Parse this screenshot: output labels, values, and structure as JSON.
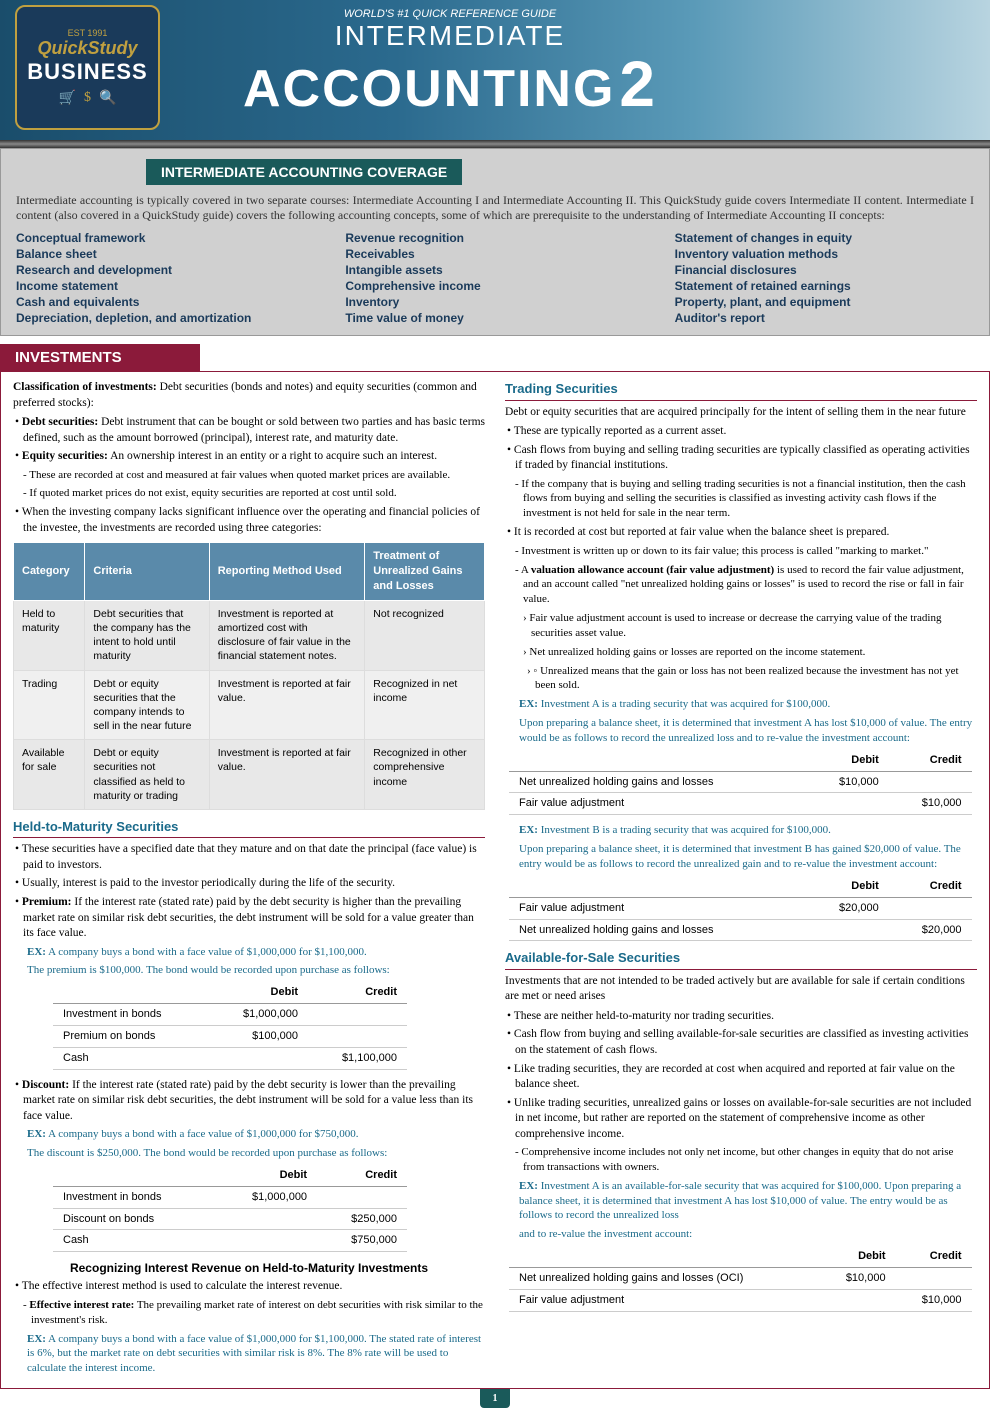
{
  "header": {
    "tag": "WORLD'S #1 QUICK REFERENCE GUIDE",
    "title1": "INTERMEDIATE",
    "title2": "ACCOUNTING",
    "num": "2",
    "logo_top": "EST 1991",
    "logo_main": "QuickStudy",
    "logo_sub": "BUSINESS"
  },
  "coverage": {
    "title": "INTERMEDIATE ACCOUNTING COVERAGE",
    "intro": "Intermediate accounting is typically covered in two separate courses: Intermediate Accounting I and Intermediate Accounting II. This QuickStudy guide covers Intermediate II content. Intermediate I content (also covered in a QuickStudy guide) covers the following accounting concepts, some of which are prerequisite to the understanding of Intermediate Accounting II concepts:",
    "items": [
      "Conceptual framework",
      "Revenue recognition",
      "Statement of changes in equity",
      "Balance sheet",
      "Receivables",
      "Inventory valuation methods",
      "Research and development",
      "Intangible assets",
      "Financial disclosures",
      "Income statement",
      "Comprehensive income",
      "Statement of retained earnings",
      "Cash and equivalents",
      "Inventory",
      "Property, plant, and equipment",
      "Depreciation, depletion, and amortization",
      "Time value of money",
      "Auditor's report"
    ]
  },
  "investments": {
    "title": "INVESTMENTS",
    "intro": "Classification of investments:",
    "intro2": " Debt securities (bonds and notes) and equity securities (common and preferred stocks):",
    "debt_label": "Debt securities:",
    "debt_text": " Debt instrument that can be bought or sold between two parties and has basic terms defined, such as the amount borrowed (principal), interest rate, and maturity date.",
    "equity_label": "Equity securities:",
    "equity_text": " An ownership interest in an entity or a right to acquire such an interest.",
    "equity_sub1": "These are recorded at cost and measured at fair values when quoted market prices are available.",
    "equity_sub2": "If quoted market prices do not exist, equity securities are reported at cost until sold.",
    "influence": "When the investing company lacks significant influence over the operating and financial policies of the investee, the investments are recorded using three categories:",
    "table_headers": [
      "Category",
      "Criteria",
      "Reporting Method Used",
      "Treatment of Unrealized Gains and Losses"
    ],
    "table_rows": [
      [
        "Held to maturity",
        "Debt securities that the company has the intent to hold until maturity",
        "Investment is reported at amortized cost with disclosure of fair value in the financial statement notes.",
        "Not recognized"
      ],
      [
        "Trading",
        "Debt or equity securities that the company intends to sell in the near future",
        "Investment is reported at fair value.",
        "Recognized in net income"
      ],
      [
        "Available for sale",
        "Debt or equity securities not classified as held to maturity or trading",
        "Investment is reported at fair value.",
        "Recognized in other comprehensive income"
      ]
    ],
    "htm_title": "Held-to-Maturity Securities",
    "htm_b1": "These securities have a specified date that they mature and on that date the principal (face value) is paid to investors.",
    "htm_b2": "Usually, interest is paid to the investor periodically during the life of the security.",
    "htm_premium_label": "Premium:",
    "htm_premium": " If the interest rate (stated rate) paid by the debt security is higher than the prevailing market rate on similar risk debt securities, the debt instrument will be sold for a value greater than its face value.",
    "htm_ex1a": "EX: A company buys a bond with a face value of $1,000,000 for $1,100,000.",
    "htm_ex1b": "The premium is $100,000. The bond would be recorded upon purchase as follows:",
    "premium_entries": [
      [
        "Investment in bonds",
        "$1,000,000",
        ""
      ],
      [
        "Premium on bonds",
        "$100,000",
        ""
      ],
      [
        "Cash",
        "",
        "$1,100,000"
      ]
    ],
    "htm_discount_label": "Discount:",
    "htm_discount": " If the interest rate (stated rate) paid by the debt security is lower than the prevailing market rate on similar risk debt securities, the debt instrument will be sold for a value less than its face value.",
    "htm_ex2a": "EX: A company buys a bond with a face value of $1,000,000 for $750,000.",
    "htm_ex2b": "The discount is $250,000. The bond would be recorded upon purchase as follows:",
    "discount_entries": [
      [
        "Investment in bonds",
        "$1,000,000",
        ""
      ],
      [
        "Discount on bonds",
        "",
        "$250,000"
      ],
      [
        "Cash",
        "",
        "$750,000"
      ]
    ],
    "interest_title": "Recognizing Interest Revenue on Held-to-Maturity Investments",
    "interest_b1": "The effective interest method is used to calculate the interest revenue.",
    "interest_eff_label": "Effective interest rate:",
    "interest_eff": " The prevailing market rate of interest on debt securities with risk similar to the investment's risk.",
    "interest_ex": "EX: A company buys a bond with a face value of $1,000,000 for $1,100,000. The stated rate of interest is 6%, but the market rate on debt securities with similar risk is 8%. The 8% rate will be used to calculate the interest income.",
    "trading_title": "Trading Securities",
    "trading_intro": "Debt or equity securities that are acquired principally for the intent of selling them in the near future",
    "trading_b1": "These are typically reported as a current asset.",
    "trading_b2": "Cash flows from buying and selling trading securities are typically classified as operating activities if traded by financial institutions.",
    "trading_s1": "If the company that is buying and selling trading securities is not a financial institution, then the cash flows from buying and selling the securities is classified as investing activity cash flows if the investment is not held for sale in the near term.",
    "trading_b3": "It is recorded at cost but reported at fair value when the balance sheet is prepared.",
    "trading_s2": "Investment is written up or down to its fair value; this process is called \"marking to market.\"",
    "trading_val_label": "valuation allowance account (fair value adjustment)",
    "trading_val": " is used to record the fair value adjustment, and an account called \"net unrealized holding gains or losses\" is used to record the rise or fall in fair value.",
    "trading_s3": "Fair value adjustment account is used to increase or decrease the carrying value of the trading securities asset value.",
    "trading_s4": "Net unrealized holding gains or losses are reported on the income statement.",
    "trading_s5": "Unrealized means that the gain or loss has not been realized because the investment has not yet been sold.",
    "trading_exA1": "EX: Investment A is a trading security that was acquired for $100,000.",
    "trading_exA2": "Upon preparing a balance sheet, it is determined that investment A has lost $10,000 of value. The entry would be as follows to record the unrealized loss and to re-value the investment account:",
    "trading_entriesA": [
      [
        "Net unrealized holding gains and losses",
        "$10,000",
        ""
      ],
      [
        "Fair value adjustment",
        "",
        "$10,000"
      ]
    ],
    "trading_exB1": "EX: Investment B is a trading security that was acquired for $100,000.",
    "trading_exB2": "Upon preparing a balance sheet, it is determined that investment B has gained $20,000 of value. The entry would be as follows to record the unrealized gain and to re-value the investment account:",
    "trading_entriesB": [
      [
        "Fair value adjustment",
        "$20,000",
        ""
      ],
      [
        "Net unrealized holding gains and losses",
        "",
        "$20,000"
      ]
    ],
    "afs_title": "Available-for-Sale Securities",
    "afs_intro": "Investments that are not intended to be traded actively but are available for sale if certain conditions are met or need arises",
    "afs_b1": "These are neither held-to-maturity nor trading securities.",
    "afs_b2": "Cash flow from buying and selling available-for-sale securities are classified as investing activities on the statement of cash flows.",
    "afs_b3": "Like trading securities, they are recorded at cost when acquired and reported at fair value on the balance sheet.",
    "afs_b4": "Unlike trading securities, unrealized gains or losses on available-for-sale securities are not included in net income, but rather are reported on the statement of comprehensive income as other comprehensive income.",
    "afs_s1": "Comprehensive income includes not only net income, but other changes in equity that do not arise from transactions with owners.",
    "afs_ex1": "EX: Investment A is an available-for-sale security that was acquired for $100,000. Upon preparing a balance sheet, it is determined that investment A has lost $10,000 of value. The entry would be as follows to record the unrealized loss",
    "afs_ex2": "and to re-value the investment account:",
    "afs_entries": [
      [
        "Net unrealized holding gains and losses (OCI)",
        "$10,000",
        ""
      ],
      [
        "Fair value adjustment",
        "",
        "$10,000"
      ]
    ]
  },
  "entry_headers": [
    "",
    "Debit",
    "Credit"
  ],
  "page_num": "1"
}
